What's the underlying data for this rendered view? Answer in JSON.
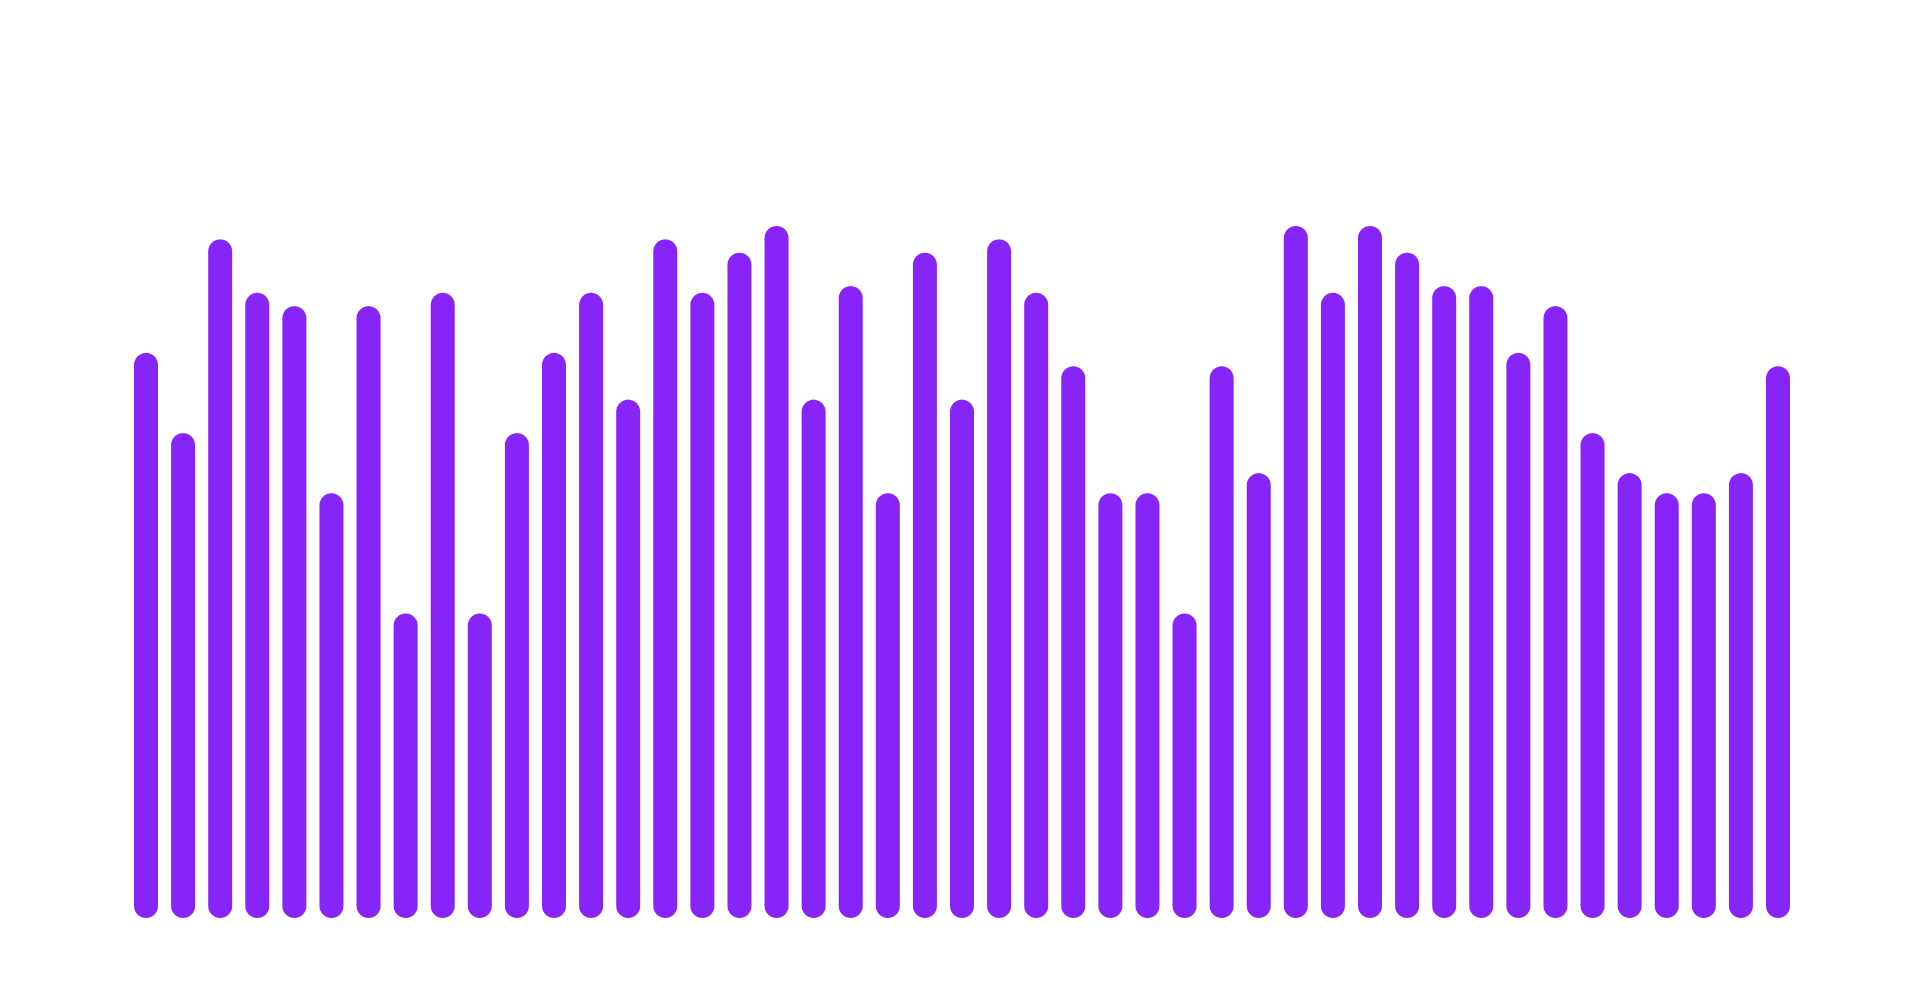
{
  "chart_data": {
    "type": "bar",
    "color": "#8724f7",
    "values": [
      81,
      69,
      98,
      90,
      88,
      60,
      88,
      42,
      90,
      42,
      69,
      81,
      90,
      74,
      98,
      90,
      96,
      100,
      74,
      91,
      60,
      96,
      74,
      98,
      90,
      79,
      60,
      60,
      42,
      79,
      63,
      100,
      90,
      100,
      96,
      91,
      91,
      81,
      88,
      69,
      63,
      60,
      60,
      63,
      79
    ]
  }
}
